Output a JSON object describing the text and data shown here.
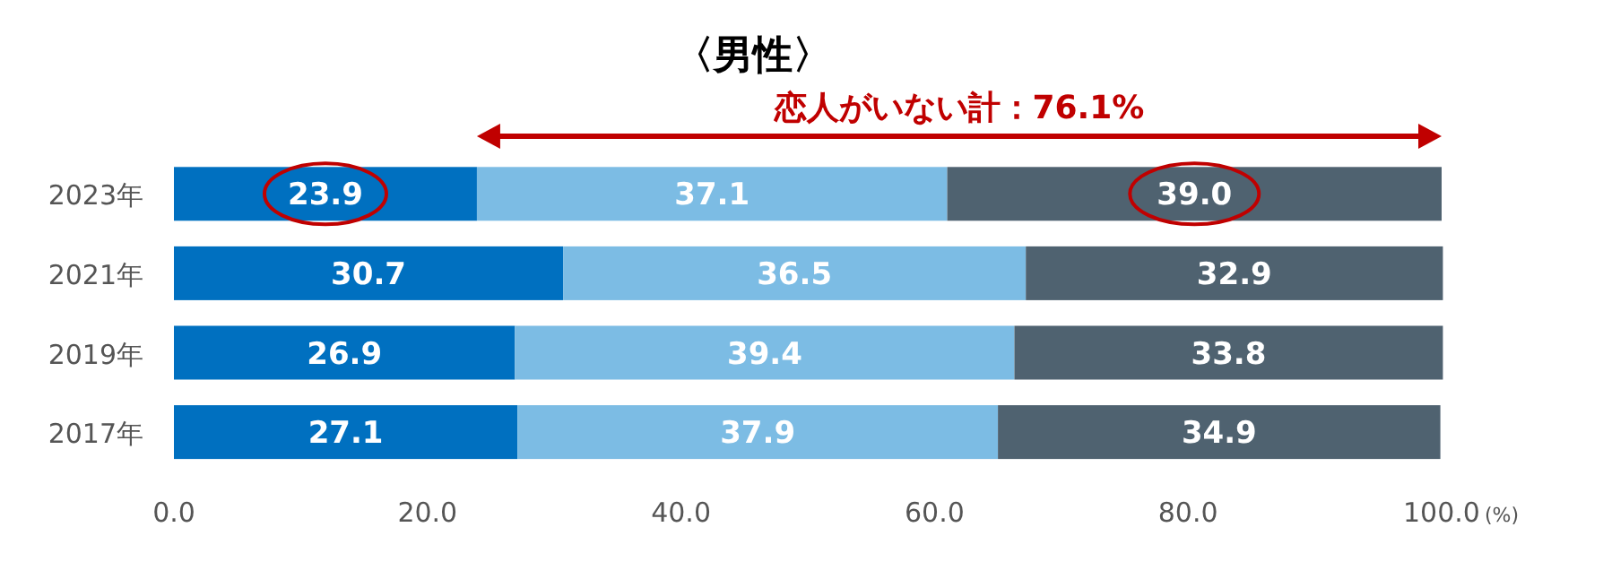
{
  "chart_data": {
    "type": "bar",
    "orientation": "horizontal",
    "stacked": true,
    "title": "〈男性〉",
    "xlabel": "(%)",
    "annotations": [
      "恋人がいない計：76.1%"
    ],
    "categories": [
      "2023年",
      "2021年",
      "2019年",
      "2017年"
    ],
    "series": [
      {
        "color": "#0070c0",
        "values": [
          23.9,
          30.7,
          26.9,
          27.1
        ],
        "value_labels": [
          "23.9",
          "30.7",
          "26.9",
          "27.1"
        ]
      },
      {
        "color": "#7cbce4",
        "values": [
          37.1,
          36.5,
          39.4,
          37.9
        ],
        "value_labels": [
          "37.1",
          "36.5",
          "39.4",
          "37.9"
        ]
      },
      {
        "color": "#4f6270",
        "values": [
          39.0,
          32.9,
          33.8,
          34.9
        ],
        "value_labels": [
          "39.0",
          "32.9",
          "33.8",
          "34.9"
        ]
      }
    ],
    "xlim": [
      0,
      100
    ],
    "xticks": [
      {
        "value": 0,
        "label": "0.0"
      },
      {
        "value": 20,
        "label": "20.0"
      },
      {
        "value": 40,
        "label": "40.0"
      },
      {
        "value": 60,
        "label": "60.0"
      },
      {
        "value": 80,
        "label": "80.0"
      },
      {
        "value": 100,
        "label": "100.0"
      }
    ]
  }
}
